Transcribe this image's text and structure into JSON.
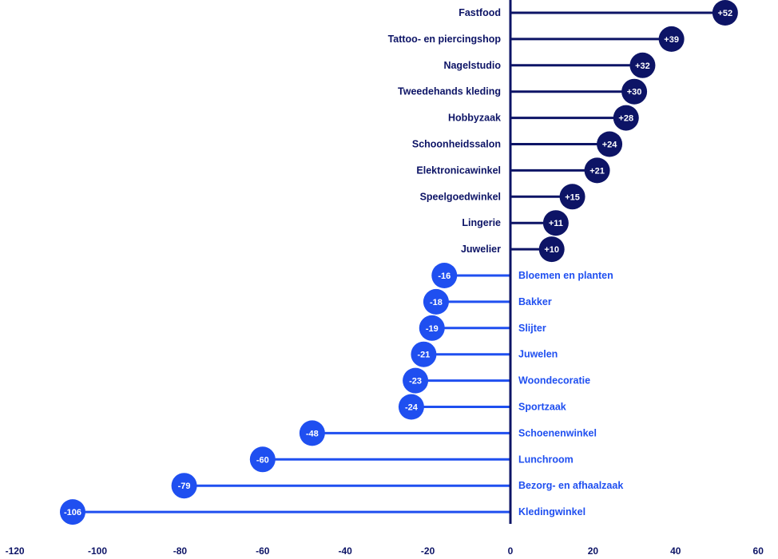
{
  "chart_data": {
    "type": "bar",
    "subtype": "diverging-lollipop",
    "title": "",
    "xlabel": "",
    "ylabel": "",
    "xlim": [
      -120,
      60
    ],
    "x_ticks": [
      -120,
      -100,
      -80,
      -60,
      -40,
      -20,
      0,
      20,
      40,
      60
    ],
    "grid": false,
    "legend": null,
    "colors": {
      "positive": "#0d1466",
      "negative": "#1f4ff0",
      "axis": "#0d1466"
    },
    "categories": [
      "Fastfood",
      "Tattoo- en piercingshop",
      "Nagelstudio",
      "Tweedehands kleding",
      "Hobbyzaak",
      "Schoonheidssalon",
      "Elektronicawinkel",
      "Speelgoedwinkel",
      "Lingerie",
      "Juwelier",
      "Bloemen en planten",
      "Bakker",
      "Slijter",
      "Juwelen",
      "Woondecoratie",
      "Sportzaak",
      "Schoenenwinkel",
      "Lunchroom",
      "Bezorg- en afhaalzaak",
      "Kledingwinkel"
    ],
    "values": [
      52,
      39,
      32,
      30,
      28,
      24,
      21,
      15,
      11,
      10,
      -16,
      -18,
      -19,
      -21,
      -23,
      -24,
      -48,
      -60,
      -79,
      -106
    ],
    "value_labels": [
      "+52",
      "+39",
      "+32",
      "+30",
      "+28",
      "+24",
      "+21",
      "+15",
      "+11",
      "+10",
      "-16",
      "-18",
      "-19",
      "-21",
      "-23",
      "-24",
      "-48",
      "-60",
      "-79",
      "-106"
    ]
  }
}
